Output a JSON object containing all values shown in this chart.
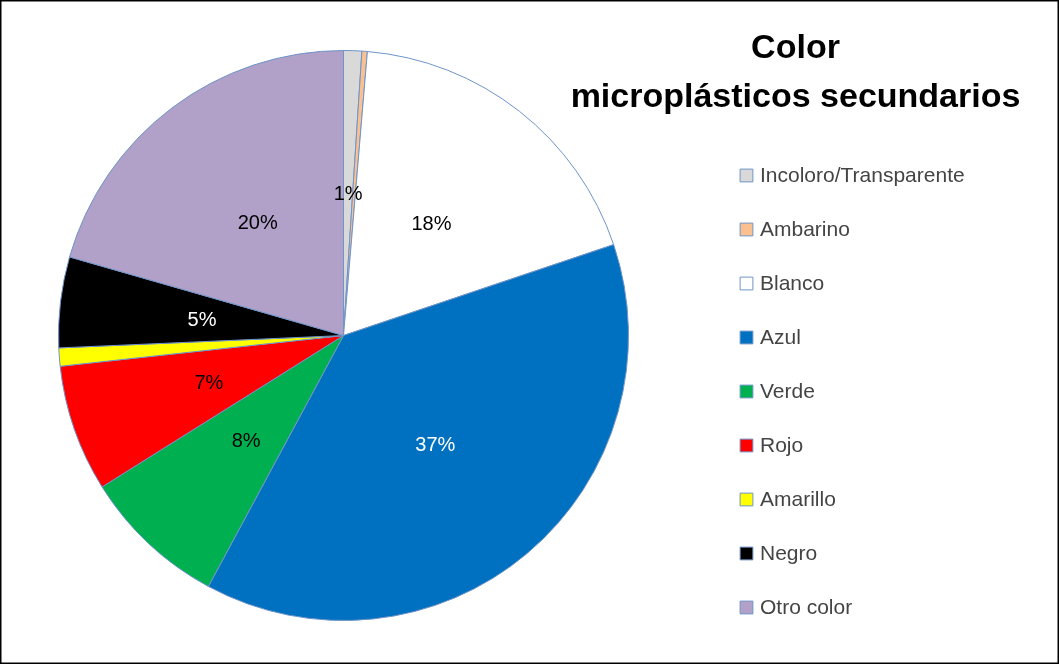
{
  "chart_data": {
    "type": "pie",
    "title": "Color microplásticos secundarios",
    "categories": [
      "Incoloro/Transparente",
      "Ambarino",
      "Blanco",
      "Azul",
      "Verde",
      "Rojo",
      "Amarillo",
      "Negro",
      "Otro color"
    ],
    "values": [
      1,
      0.3,
      18,
      37,
      8,
      7,
      1,
      5,
      20
    ],
    "value_labels": [
      "1%",
      null,
      "18%",
      "37%",
      "8%",
      "7%",
      null,
      "5%",
      "20%"
    ],
    "colors": [
      "#d9d9d9",
      "#fac090",
      "#ffffff",
      "#0070c0",
      "#00b050",
      "#ff0000",
      "#ffff00",
      "#000000",
      "#b1a0c7"
    ],
    "legend": "right"
  }
}
